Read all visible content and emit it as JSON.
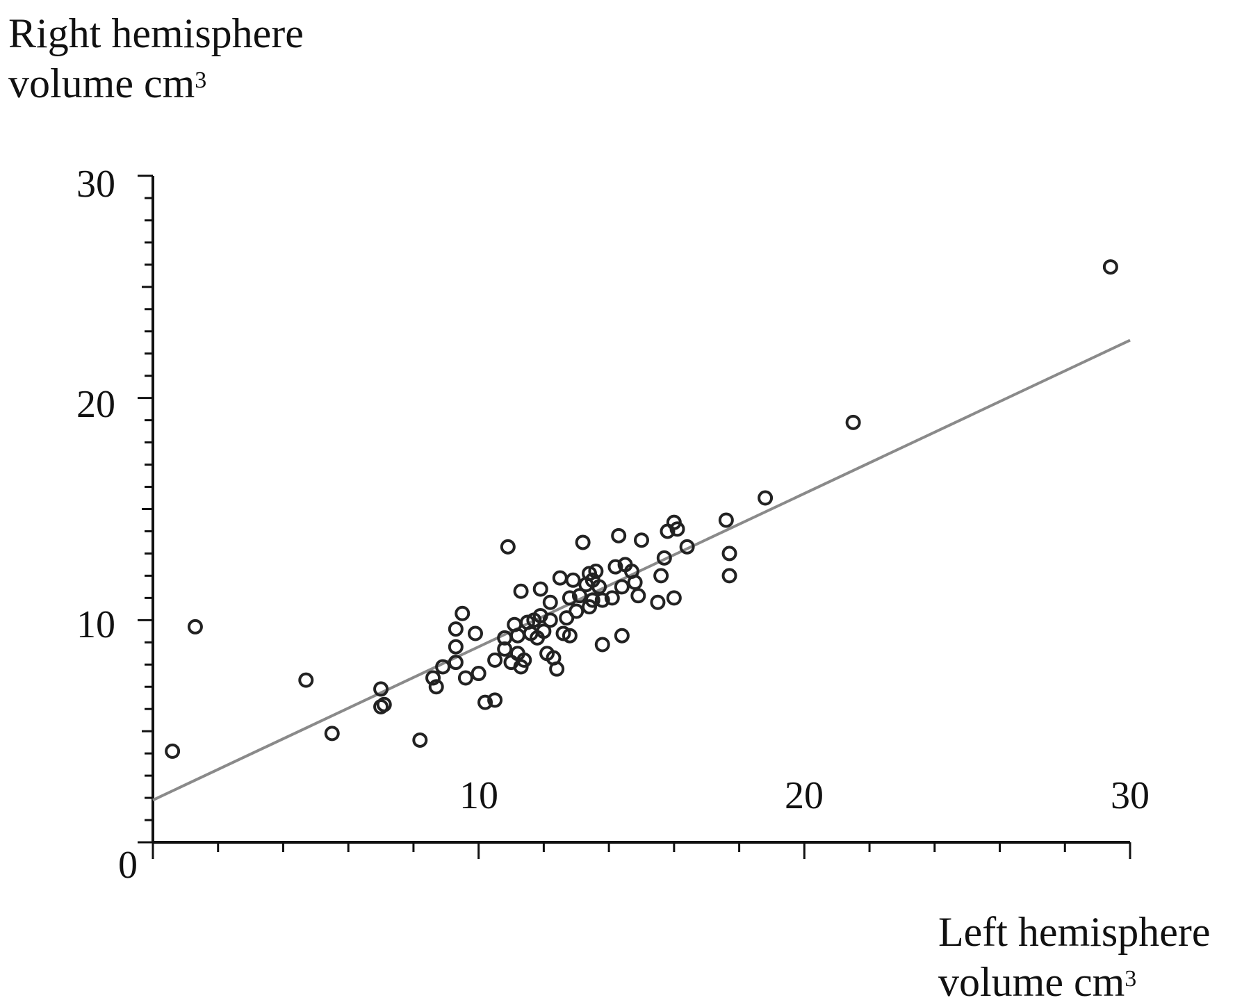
{
  "chart_data": {
    "type": "scatter",
    "title": "",
    "ylabel": {
      "line1": "Right hemisphere",
      "line2": "volume cm",
      "sup": "3"
    },
    "xlabel": {
      "line1": "Left hemisphere",
      "line2": "volume cm",
      "sup": "3"
    },
    "xlim": [
      0,
      30
    ],
    "ylim": [
      0,
      30
    ],
    "x_ticks": [
      "10",
      "20",
      "30"
    ],
    "y_ticks": [
      "10",
      "20",
      "30"
    ],
    "origin_label": "0",
    "grid": false,
    "legend": "none",
    "colors": {
      "axis": "#111111",
      "points": "#222222",
      "trendline": "#8a8a8a"
    },
    "points": [
      [
        0.6,
        4.1
      ],
      [
        1.3,
        9.7
      ],
      [
        4.7,
        7.3
      ],
      [
        5.5,
        4.9
      ],
      [
        7.0,
        6.9
      ],
      [
        7.0,
        6.1
      ],
      [
        7.1,
        6.2
      ],
      [
        8.2,
        4.6
      ],
      [
        8.6,
        7.4
      ],
      [
        8.7,
        7.0
      ],
      [
        8.9,
        7.9
      ],
      [
        9.3,
        8.8
      ],
      [
        9.3,
        9.6
      ],
      [
        9.3,
        8.1
      ],
      [
        9.5,
        10.3
      ],
      [
        9.6,
        7.4
      ],
      [
        9.9,
        9.4
      ],
      [
        10.0,
        7.6
      ],
      [
        10.2,
        6.3
      ],
      [
        10.5,
        6.4
      ],
      [
        10.5,
        8.2
      ],
      [
        10.8,
        8.7
      ],
      [
        10.8,
        9.2
      ],
      [
        10.9,
        13.3
      ],
      [
        11.0,
        8.1
      ],
      [
        11.1,
        9.8
      ],
      [
        11.2,
        8.5
      ],
      [
        11.2,
        9.3
      ],
      [
        11.3,
        7.9
      ],
      [
        11.3,
        11.3
      ],
      [
        11.4,
        8.2
      ],
      [
        11.5,
        9.9
      ],
      [
        11.6,
        9.4
      ],
      [
        11.7,
        10.0
      ],
      [
        11.8,
        9.2
      ],
      [
        11.9,
        10.2
      ],
      [
        11.9,
        11.4
      ],
      [
        12.0,
        9.5
      ],
      [
        12.1,
        8.5
      ],
      [
        12.2,
        10.0
      ],
      [
        12.2,
        10.8
      ],
      [
        12.3,
        8.3
      ],
      [
        12.4,
        7.8
      ],
      [
        12.5,
        11.9
      ],
      [
        12.6,
        9.4
      ],
      [
        12.7,
        10.1
      ],
      [
        12.8,
        9.3
      ],
      [
        12.8,
        11.0
      ],
      [
        12.9,
        11.8
      ],
      [
        13.0,
        10.4
      ],
      [
        13.1,
        11.1
      ],
      [
        13.2,
        13.5
      ],
      [
        13.3,
        11.6
      ],
      [
        13.4,
        10.6
      ],
      [
        13.4,
        12.1
      ],
      [
        13.5,
        10.9
      ],
      [
        13.5,
        11.8
      ],
      [
        13.6,
        12.2
      ],
      [
        13.7,
        11.5
      ],
      [
        13.8,
        10.9
      ],
      [
        13.8,
        8.9
      ],
      [
        14.1,
        11.0
      ],
      [
        14.2,
        12.4
      ],
      [
        14.3,
        13.8
      ],
      [
        14.4,
        9.3
      ],
      [
        14.4,
        11.5
      ],
      [
        14.5,
        12.5
      ],
      [
        14.7,
        12.2
      ],
      [
        14.8,
        11.7
      ],
      [
        14.9,
        11.1
      ],
      [
        15.0,
        13.6
      ],
      [
        15.5,
        10.8
      ],
      [
        15.6,
        12.0
      ],
      [
        15.7,
        12.8
      ],
      [
        15.8,
        14.0
      ],
      [
        16.0,
        14.4
      ],
      [
        16.0,
        11.0
      ],
      [
        16.1,
        14.1
      ],
      [
        16.4,
        13.3
      ],
      [
        17.6,
        14.5
      ],
      [
        17.7,
        13.0
      ],
      [
        17.7,
        12.0
      ],
      [
        18.8,
        15.5
      ],
      [
        21.5,
        18.9
      ],
      [
        29.4,
        25.9
      ]
    ],
    "trendline": {
      "start": [
        0,
        1.9
      ],
      "end": [
        30,
        22.6
      ]
    }
  }
}
